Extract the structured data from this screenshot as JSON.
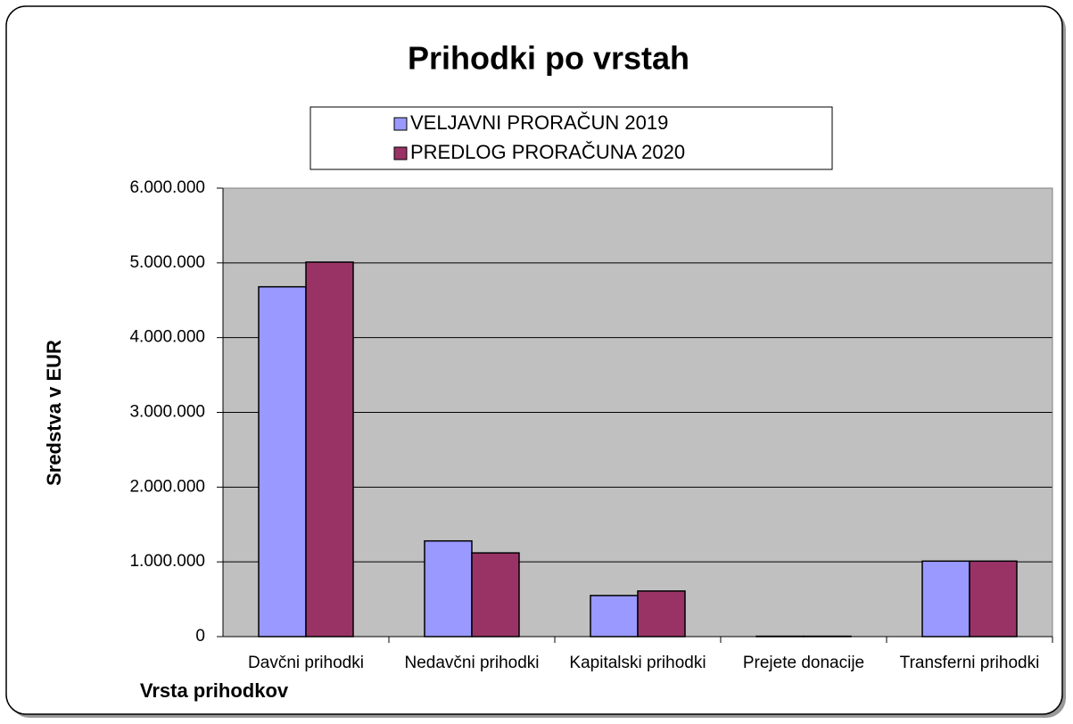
{
  "chart_data": {
    "type": "bar",
    "title": "Prihodki po vrstah",
    "x_label": "Vrsta prihodkov",
    "y_label": "Sredstva v EUR",
    "categories": [
      "Davčni prihodki",
      "Nedavčni prihodki",
      "Kapitalski prihodki",
      "Prejete donacije",
      "Transferni prihodki"
    ],
    "series": [
      {
        "name": "VELJAVNI PRORAČUN 2019",
        "color": "#9999ff",
        "values": [
          4680000,
          1280000,
          550000,
          5000,
          1010000
        ]
      },
      {
        "name": "PREDLOG PRORAČUNA 2020",
        "color": "#993366",
        "values": [
          5010000,
          1120000,
          610000,
          5000,
          1010000
        ]
      }
    ],
    "ylim": [
      0,
      6000000
    ],
    "yticks": [
      0,
      {
        "value": 1000000,
        "label": "1.000.000"
      },
      {
        "value": 2000000,
        "label": "2.000.000"
      },
      {
        "value": 3000000,
        "label": "3.000.000"
      },
      {
        "value": 4000000,
        "label": "4.000.000"
      },
      {
        "value": 5000000,
        "label": "5.000.000"
      },
      {
        "value": 6000000,
        "label": "6.000.000"
      }
    ],
    "grid": true,
    "plot_background": "#c0c0c0",
    "legend": "top"
  }
}
